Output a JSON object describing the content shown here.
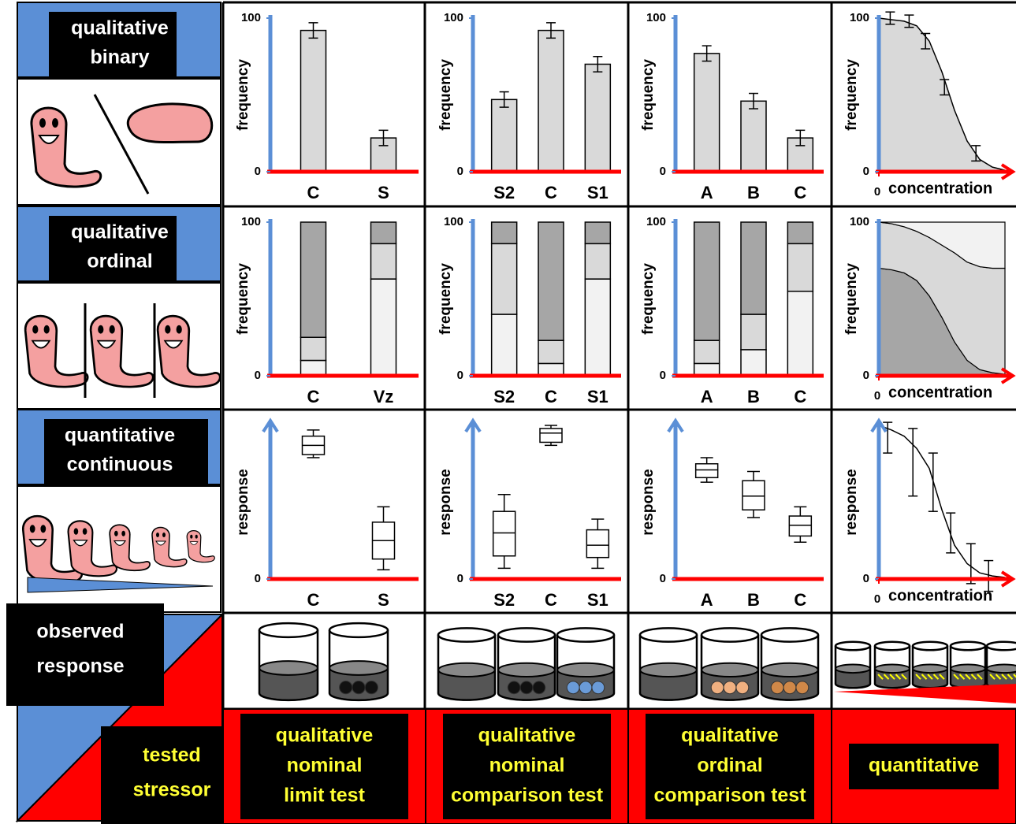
{
  "row_labels": [
    [
      "qualitative",
      "binary"
    ],
    [
      "qualitative",
      "ordinal"
    ],
    [
      "quantitative",
      "continuous"
    ]
  ],
  "observed_label": [
    "observed",
    "response"
  ],
  "tested_label": [
    "tested",
    "stressor"
  ],
  "column_labels": [
    [
      "qualitative",
      "nominal",
      "limit test"
    ],
    [
      "qualitative",
      "nominal",
      "comparison test"
    ],
    [
      "qualitative",
      "ordinal",
      "comparison test"
    ],
    [
      "quantitative"
    ]
  ],
  "chart_data": [
    {
      "type": "bar",
      "ylabel": "frequency",
      "categories": [
        "C",
        "S"
      ],
      "values": [
        92,
        22
      ],
      "errors": [
        5,
        5
      ],
      "color": "#d9d9d9",
      "ylim": [
        0,
        100
      ],
      "yticks": [
        0,
        100
      ]
    },
    {
      "type": "bar",
      "ylabel": "frequency",
      "categories": [
        "S2",
        "C",
        "S1"
      ],
      "values": [
        47,
        92,
        70
      ],
      "errors": [
        5,
        5,
        5
      ],
      "color": "#d9d9d9",
      "ylim": [
        0,
        100
      ],
      "yticks": [
        0,
        100
      ]
    },
    {
      "type": "bar",
      "ylabel": "frequency",
      "categories": [
        "A",
        "B",
        "C"
      ],
      "values": [
        77,
        46,
        22
      ],
      "errors": [
        5,
        5,
        5
      ],
      "color": "#d9d9d9",
      "ylim": [
        0,
        100
      ],
      "yticks": [
        0,
        100
      ]
    },
    {
      "type": "line",
      "ylabel": "frequency",
      "xlabel": "concentration",
      "x": [
        0.9,
        2.4,
        3.7,
        5.2,
        7.7
      ],
      "values": [
        100,
        98,
        85,
        55,
        12
      ],
      "errors": [
        4,
        4,
        5,
        5,
        5
      ],
      "fit_x": [
        0,
        1,
        2,
        3,
        4,
        5,
        6,
        7,
        8,
        9,
        10
      ],
      "fit_values": [
        100,
        99,
        98,
        95,
        85,
        65,
        40,
        20,
        8,
        3,
        1
      ],
      "fill": "#d9d9d9",
      "xlim": [
        0,
        10
      ],
      "xticks": [
        0
      ],
      "ylim": [
        0,
        100
      ],
      "yticks": [
        0,
        100
      ]
    },
    {
      "type": "stacked_bar",
      "ylabel": "frequency",
      "categories": [
        "C",
        "Vz"
      ],
      "series": [
        {
          "color": "#f2f2f2",
          "values": [
            10,
            63
          ]
        },
        {
          "color": "#d9d9d9",
          "values": [
            15,
            23
          ]
        },
        {
          "color": "#a6a6a6",
          "values": [
            75,
            14
          ]
        }
      ],
      "ylim": [
        0,
        100
      ],
      "yticks": [
        0,
        100
      ]
    },
    {
      "type": "stacked_bar",
      "ylabel": "frequency",
      "categories": [
        "S2",
        "C",
        "S1"
      ],
      "series": [
        {
          "color": "#f2f2f2",
          "values": [
            40,
            8,
            63
          ]
        },
        {
          "color": "#d9d9d9",
          "values": [
            46,
            15,
            23
          ]
        },
        {
          "color": "#a6a6a6",
          "values": [
            14,
            77,
            14
          ]
        }
      ],
      "ylim": [
        0,
        100
      ],
      "yticks": [
        0,
        100
      ]
    },
    {
      "type": "stacked_bar",
      "ylabel": "frequency",
      "categories": [
        "A",
        "B",
        "C"
      ],
      "series": [
        {
          "color": "#f2f2f2",
          "values": [
            8,
            17,
            55
          ]
        },
        {
          "color": "#d9d9d9",
          "values": [
            15,
            23,
            31
          ]
        },
        {
          "color": "#a6a6a6",
          "values": [
            77,
            60,
            14
          ]
        }
      ],
      "ylim": [
        0,
        100
      ],
      "yticks": [
        0,
        100
      ]
    },
    {
      "type": "stacked_area",
      "ylabel": "frequency",
      "xlabel": "concentration",
      "x": [
        0,
        1,
        2,
        3,
        4,
        5,
        6,
        7,
        8,
        9,
        10
      ],
      "series": [
        {
          "color": "#a6a6a6",
          "values": [
            70,
            69,
            67,
            62,
            52,
            38,
            22,
            10,
            4,
            2,
            1
          ]
        },
        {
          "color": "#d9d9d9",
          "values": [
            30,
            30,
            30,
            32,
            38,
            47,
            58,
            64,
            67,
            68,
            69
          ]
        },
        {
          "color": "#f2f2f2",
          "values": [
            0,
            1,
            3,
            6,
            10,
            15,
            20,
            26,
            29,
            30,
            30
          ]
        }
      ],
      "xlim": [
        0,
        10
      ],
      "xticks": [
        0
      ],
      "ylim": [
        0,
        100
      ],
      "yticks": [
        0,
        100
      ]
    },
    {
      "type": "box",
      "ylabel": "response",
      "categories": [
        "C",
        "S"
      ],
      "min": [
        79,
        6
      ],
      "q1": [
        81,
        13
      ],
      "median": [
        87,
        25
      ],
      "q3": [
        93,
        37
      ],
      "max": [
        97,
        47
      ],
      "ylim": [
        0,
        100
      ],
      "yticks": [
        0
      ]
    },
    {
      "type": "box",
      "ylabel": "response",
      "categories": [
        "S2",
        "C",
        "S1"
      ],
      "min": [
        7,
        87,
        7
      ],
      "q1": [
        15,
        89,
        14
      ],
      "median": [
        30,
        95,
        22
      ],
      "q3": [
        44,
        98,
        32
      ],
      "max": [
        55,
        100,
        39
      ],
      "ylim": [
        0,
        100
      ],
      "yticks": [
        0
      ]
    },
    {
      "type": "box",
      "ylabel": "response",
      "categories": [
        "A",
        "B",
        "C"
      ],
      "min": [
        63,
        40,
        24
      ],
      "q1": [
        66,
        45,
        28
      ],
      "median": [
        71,
        54,
        35
      ],
      "q3": [
        75,
        64,
        41
      ],
      "max": [
        79,
        70,
        47
      ],
      "ylim": [
        0,
        100
      ],
      "yticks": [
        0
      ]
    },
    {
      "type": "line",
      "ylabel": "response",
      "xlabel": "concentration",
      "x": [
        0.7,
        2.7,
        4.3,
        5.7,
        7.3,
        8.7
      ],
      "values": [
        92,
        76,
        63,
        30,
        10,
        2
      ],
      "errors": [
        10,
        22,
        19,
        13,
        13,
        10
      ],
      "fit_x": [
        0,
        1,
        2,
        3,
        4,
        5,
        6,
        7,
        8,
        9,
        10
      ],
      "fit_values": [
        100,
        97,
        93,
        85,
        72,
        45,
        22,
        10,
        4,
        2,
        1
      ],
      "xlim": [
        0,
        10
      ],
      "xticks": [
        0
      ],
      "ylim": [
        0,
        100
      ],
      "yticks": [
        0
      ]
    }
  ]
}
